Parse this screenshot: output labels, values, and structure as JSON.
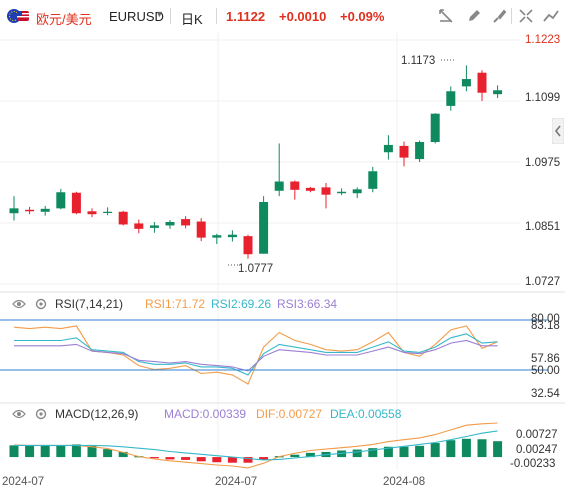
{
  "header": {
    "pair_label": "欧元/美元",
    "symbol": "EURUSD",
    "timeframe": "日K",
    "price": "1.1122",
    "change": "+0.0010",
    "change_pct": "+0.09%"
  },
  "colors": {
    "up": "#0f8a5f",
    "down": "#e8212e",
    "rsi1": "#f39c4a",
    "rsi2": "#35b8c9",
    "rsi3": "#9b7fd4",
    "macd": "#9b7fd4",
    "dif": "#f39c4a",
    "dea": "#35b8c9",
    "hline": "#2f7fd8"
  },
  "price_axis": {
    "ticks": [
      "1.1223",
      "1.1099",
      "1.0975",
      "1.0851",
      "1.0727"
    ],
    "high_marker": "1.1173",
    "low_marker": "1.0777"
  },
  "rsi": {
    "title": "RSI(7,14,21)",
    "rsi1_label": "RSI1:71.72",
    "rsi2_label": "RSI2:69.26",
    "rsi3_label": "RSI3:66.34",
    "ticks": [
      "80.00",
      "83.18",
      "57.86",
      "50.00",
      "32.54"
    ]
  },
  "macd": {
    "title": "MACD(12,26,9)",
    "macd_label": "MACD:0.00339",
    "dif_label": "DIF:0.00727",
    "dea_label": "DEA:0.00558",
    "ticks": [
      "0.00727",
      "0.00247",
      "-0.00233"
    ]
  },
  "dates": [
    "2024-07",
    "2024-07",
    "2024-08"
  ],
  "chart_data": {
    "type": "candlestick",
    "price_ylim": [
      1.0727,
      1.1223
    ],
    "candles": [
      {
        "o": 1.087,
        "h": 1.0905,
        "l": 1.0855,
        "c": 1.088
      },
      {
        "o": 1.0877,
        "h": 1.0883,
        "l": 1.0868,
        "c": 1.0874
      },
      {
        "o": 1.0873,
        "h": 1.0885,
        "l": 1.0865,
        "c": 1.0879
      },
      {
        "o": 1.088,
        "h": 1.092,
        "l": 1.0878,
        "c": 1.0913
      },
      {
        "o": 1.0912,
        "h": 1.0914,
        "l": 1.0868,
        "c": 1.087
      },
      {
        "o": 1.0874,
        "h": 1.088,
        "l": 1.0862,
        "c": 1.0868
      },
      {
        "o": 1.0873,
        "h": 1.0882,
        "l": 1.0866,
        "c": 1.0873
      },
      {
        "o": 1.0873,
        "h": 1.0875,
        "l": 1.0845,
        "c": 1.0847
      },
      {
        "o": 1.0849,
        "h": 1.0857,
        "l": 1.0829,
        "c": 1.0838
      },
      {
        "o": 1.084,
        "h": 1.0852,
        "l": 1.083,
        "c": 1.0845
      },
      {
        "o": 1.0845,
        "h": 1.0856,
        "l": 1.0838,
        "c": 1.0852
      },
      {
        "o": 1.0858,
        "h": 1.0864,
        "l": 1.0839,
        "c": 1.0845
      },
      {
        "o": 1.0853,
        "h": 1.086,
        "l": 1.0813,
        "c": 1.082
      },
      {
        "o": 1.082,
        "h": 1.0828,
        "l": 1.0807,
        "c": 1.0825
      },
      {
        "o": 1.0821,
        "h": 1.0835,
        "l": 1.0812,
        "c": 1.0826
      },
      {
        "o": 1.0823,
        "h": 1.0826,
        "l": 1.0777,
        "c": 1.0786
      },
      {
        "o": 1.0787,
        "h": 1.0905,
        "l": 1.0787,
        "c": 1.0893
      },
      {
        "o": 1.0916,
        "h": 1.1013,
        "l": 1.0905,
        "c": 1.0935
      },
      {
        "o": 1.0935,
        "h": 1.0937,
        "l": 1.0898,
        "c": 1.0918
      },
      {
        "o": 1.0922,
        "h": 1.0924,
        "l": 1.0913,
        "c": 1.0916
      },
      {
        "o": 1.0923,
        "h": 1.0932,
        "l": 1.088,
        "c": 1.0908
      },
      {
        "o": 1.0911,
        "h": 1.0921,
        "l": 1.0907,
        "c": 1.0914
      },
      {
        "o": 1.0911,
        "h": 1.0923,
        "l": 1.0901,
        "c": 1.0919
      },
      {
        "o": 1.092,
        "h": 1.0965,
        "l": 1.0913,
        "c": 1.0956
      },
      {
        "o": 1.0995,
        "h": 1.103,
        "l": 1.098,
        "c": 1.101
      },
      {
        "o": 1.1008,
        "h": 1.1017,
        "l": 1.0966,
        "c": 1.0984
      },
      {
        "o": 1.0981,
        "h": 1.1019,
        "l": 1.0975,
        "c": 1.1016
      },
      {
        "o": 1.1016,
        "h": 1.1075,
        "l": 1.1013,
        "c": 1.1074
      },
      {
        "o": 1.109,
        "h": 1.113,
        "l": 1.108,
        "c": 1.112
      },
      {
        "o": 1.113,
        "h": 1.1173,
        "l": 1.112,
        "c": 1.1145
      },
      {
        "o": 1.1158,
        "h": 1.1163,
        "l": 1.11,
        "c": 1.1117
      },
      {
        "o": 1.1114,
        "h": 1.1132,
        "l": 1.1106,
        "c": 1.1122
      }
    ],
    "rsi_ylim": [
      32.54,
      83.18
    ],
    "rsi_series": [
      {
        "name": "RSI1",
        "values": [
          83,
          82,
          83,
          82,
          84,
          65,
          64,
          62,
          54,
          51,
          52,
          54,
          48,
          49,
          47,
          40,
          68,
          79,
          73,
          70,
          66,
          65,
          66,
          72,
          79,
          64,
          61,
          70,
          81,
          84,
          67,
          72
        ]
      },
      {
        "name": "RSI2",
        "values": [
          73,
          73,
          73,
          73,
          75,
          66,
          65,
          64,
          57,
          55,
          55,
          56,
          53,
          53,
          52,
          47,
          63,
          70,
          68,
          66,
          64,
          64,
          64,
          68,
          72,
          65,
          64,
          68,
          75,
          78,
          71,
          72
        ]
      },
      {
        "name": "RSI3",
        "values": [
          69,
          69,
          69,
          69,
          70,
          65,
          64,
          63,
          58,
          57,
          56,
          57,
          55,
          54,
          53,
          50,
          61,
          66,
          65,
          64,
          62,
          62,
          62,
          65,
          68,
          64,
          63,
          66,
          71,
          73,
          69,
          69
        ]
      }
    ],
    "macd_ylim": [
      -0.00233,
      0.00727
    ],
    "macd_hist": [
      0.0025,
      0.0024,
      0.0025,
      0.0025,
      0.0027,
      0.0025,
      0.0017,
      0.0011,
      0.0002,
      -0.0002,
      -0.0005,
      -0.0006,
      -0.0009,
      -0.0011,
      -0.0012,
      -0.0012,
      -0.0006,
      0.0002,
      0.0005,
      0.0009,
      0.0011,
      0.0014,
      0.0016,
      0.0019,
      0.0022,
      0.0022,
      0.0024,
      0.003,
      0.0036,
      0.0039,
      0.0038,
      0.00339
    ],
    "dif": [
      0.0026,
      0.0025,
      0.0025,
      0.0025,
      0.0025,
      0.0022,
      0.0018,
      0.001,
      0.0001,
      -0.0004,
      -0.0008,
      -0.0011,
      -0.0014,
      -0.0017,
      -0.0019,
      -0.0023,
      -0.0013,
      0.0001,
      0.0008,
      0.0014,
      0.0017,
      0.002,
      0.0023,
      0.0027,
      0.0033,
      0.0037,
      0.0041,
      0.0048,
      0.0058,
      0.0068,
      0.0071,
      0.00727
    ],
    "dea": [
      0.0025,
      0.0025,
      0.0025,
      0.0025,
      0.0025,
      0.0025,
      0.0024,
      0.0022,
      0.0019,
      0.0016,
      0.0012,
      0.0009,
      0.0006,
      0.0003,
      0.0,
      -0.0003,
      -0.0006,
      -0.0005,
      -0.0002,
      0.0001,
      0.0005,
      0.0008,
      0.0011,
      0.0015,
      0.0019,
      0.0023,
      0.0027,
      0.0031,
      0.0037,
      0.0044,
      0.0051,
      0.00558
    ]
  }
}
